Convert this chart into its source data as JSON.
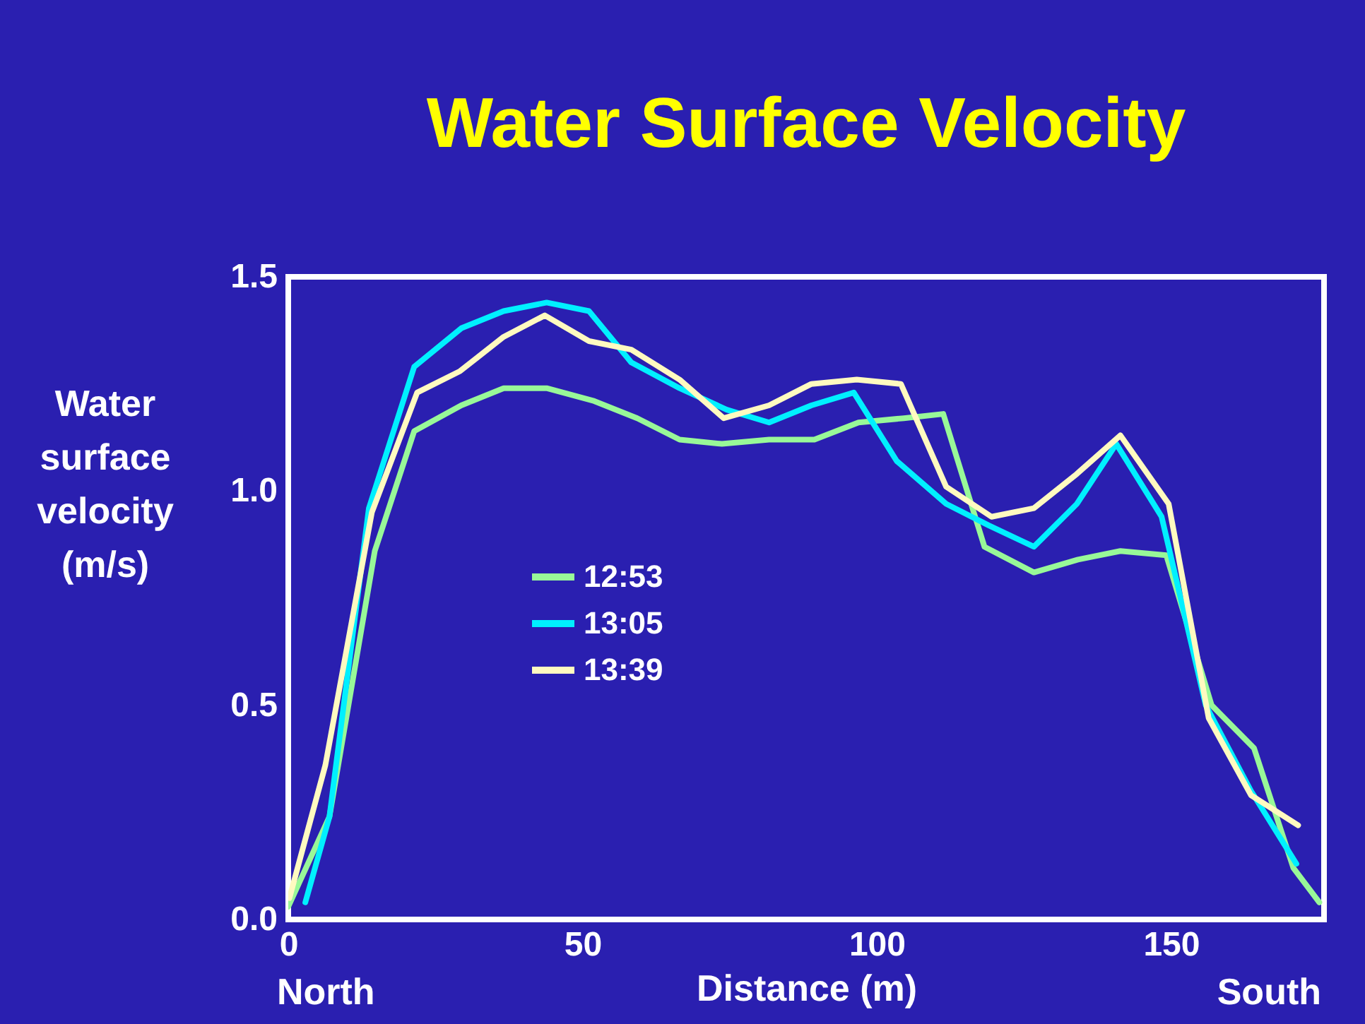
{
  "chart_data": {
    "type": "line",
    "title": "Water Surface Velocity",
    "xlabel": "Distance (m)",
    "ylabel": "Water surface velocity (m/s)",
    "annotations": [
      "North",
      "South"
    ],
    "xlim": [
      0,
      176
    ],
    "xticks": [
      0,
      50,
      100,
      150
    ],
    "ylim": [
      0,
      1.5
    ],
    "yticks": [
      {
        "value": 0,
        "label": "0.0"
      },
      {
        "value": 0.5,
        "label": "0.5"
      },
      {
        "value": 1,
        "label": "1.0"
      },
      {
        "value": 1.5,
        "label": "1.5"
      }
    ],
    "grid": false,
    "legend": "left",
    "marker": "none",
    "line_style": "solid",
    "series": [
      {
        "name": "12:53",
        "color": "#98f898",
        "x": [
          0,
          7,
          14.7,
          21.4,
          29.4,
          36.6,
          43.9,
          52,
          59.3,
          66.5,
          73.7,
          81.7,
          89.4,
          96.9,
          104.6,
          111.3,
          118.3,
          126.7,
          134.2,
          141.4,
          149.2,
          156.9,
          164.1,
          170.8,
          175.2
        ],
        "values": [
          0.03,
          0.24,
          0.86,
          1.14,
          1.2,
          1.24,
          1.24,
          1.21,
          1.17,
          1.12,
          1.11,
          1.12,
          1.12,
          1.16,
          1.17,
          1.18,
          0.87,
          0.81,
          0.84,
          0.86,
          0.85,
          0.5,
          0.4,
          0.12,
          0.04
        ]
      },
      {
        "name": "13:05",
        "color": "#00f0ff",
        "x": [
          2.9,
          7,
          13.7,
          21.4,
          29.4,
          36.6,
          43.9,
          51.1,
          58.3,
          66.5,
          74.5,
          81.7,
          88.9,
          96.1,
          103.4,
          111.8,
          119,
          126.7,
          134,
          140.7,
          148.4,
          155.9,
          163.6,
          171.3
        ],
        "values": [
          0.04,
          0.24,
          0.96,
          1.29,
          1.38,
          1.42,
          1.44,
          1.42,
          1.3,
          1.24,
          1.19,
          1.16,
          1.2,
          1.23,
          1.07,
          0.97,
          0.92,
          0.87,
          0.97,
          1.11,
          0.94,
          0.5,
          0.3,
          0.13
        ]
      },
      {
        "name": "13:39",
        "color": "#fffac0",
        "x": [
          0.2,
          6.3,
          14.2,
          21.9,
          29.2,
          36.6,
          43.6,
          51.1,
          58.3,
          66.5,
          74,
          81.7,
          88.9,
          96.6,
          104.1,
          111.8,
          119.5,
          126.7,
          134,
          141.4,
          149.6,
          156.4,
          163.6,
          171.6
        ],
        "values": [
          0.05,
          0.36,
          0.95,
          1.23,
          1.28,
          1.36,
          1.41,
          1.35,
          1.33,
          1.26,
          1.17,
          1.2,
          1.25,
          1.26,
          1.25,
          1.01,
          0.94,
          0.96,
          1.04,
          1.13,
          0.97,
          0.47,
          0.29,
          0.22
        ]
      }
    ]
  }
}
